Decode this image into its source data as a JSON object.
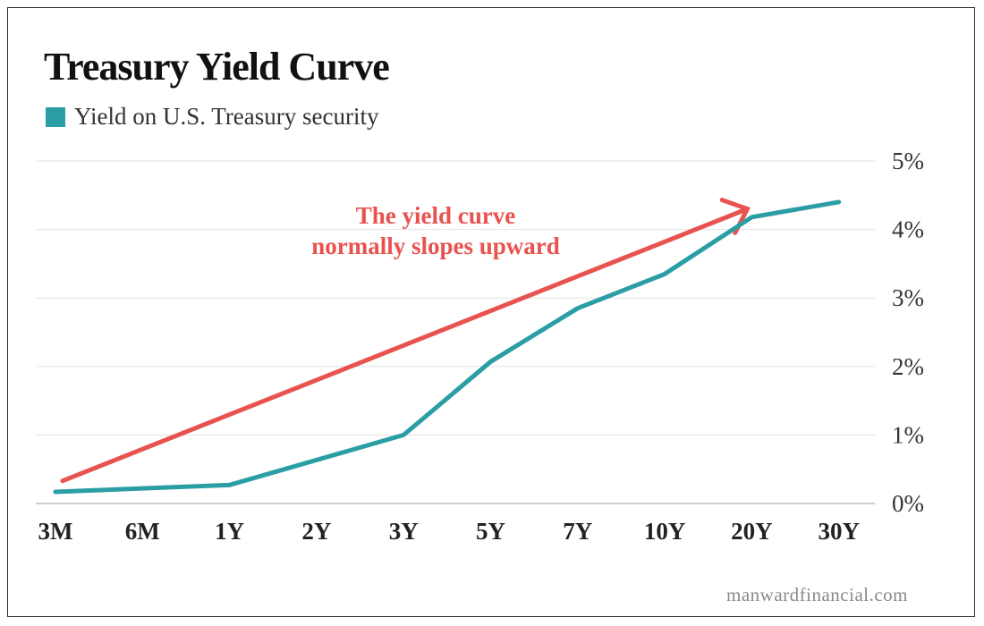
{
  "title": "Treasury Yield Curve",
  "legend": {
    "label": "Yield on U.S. Treasury security",
    "color": "#2a9ea4"
  },
  "watermark": "manwardfinancial.com",
  "annotation": {
    "line1": "The yield curve",
    "line2": "normally slopes upward",
    "color": "#e8534f"
  },
  "chart_data": {
    "type": "line",
    "title": "Treasury Yield Curve",
    "categories": [
      "3M",
      "6M",
      "1Y",
      "2Y",
      "3Y",
      "5Y",
      "7Y",
      "10Y",
      "20Y",
      "30Y"
    ],
    "yticks": [
      "0%",
      "1%",
      "2%",
      "3%",
      "4%",
      "5%"
    ],
    "ylim": [
      0,
      5
    ],
    "grid": true,
    "legend_position": "top-left",
    "y_axis_side": "right",
    "series": [
      {
        "name": "Yield on U.S. Treasury security",
        "color": "#2a9ea4",
        "points": [
          {
            "x": "3M",
            "y": 0.17
          },
          {
            "x": "1Y",
            "y": 0.27
          },
          {
            "x": "3Y",
            "y": 1.0
          },
          {
            "x": "5Y",
            "y": 2.07
          },
          {
            "x": "7Y",
            "y": 2.85
          },
          {
            "x": "10Y",
            "y": 3.35
          },
          {
            "x": "20Y",
            "y": 4.18
          },
          {
            "x": "30Y",
            "y": 4.4
          }
        ]
      }
    ],
    "trend_arrow": {
      "from": {
        "x": "3M",
        "y": 0.33
      },
      "to": {
        "x": "20Y",
        "y": 4.3
      },
      "color": "#e8534f"
    }
  }
}
